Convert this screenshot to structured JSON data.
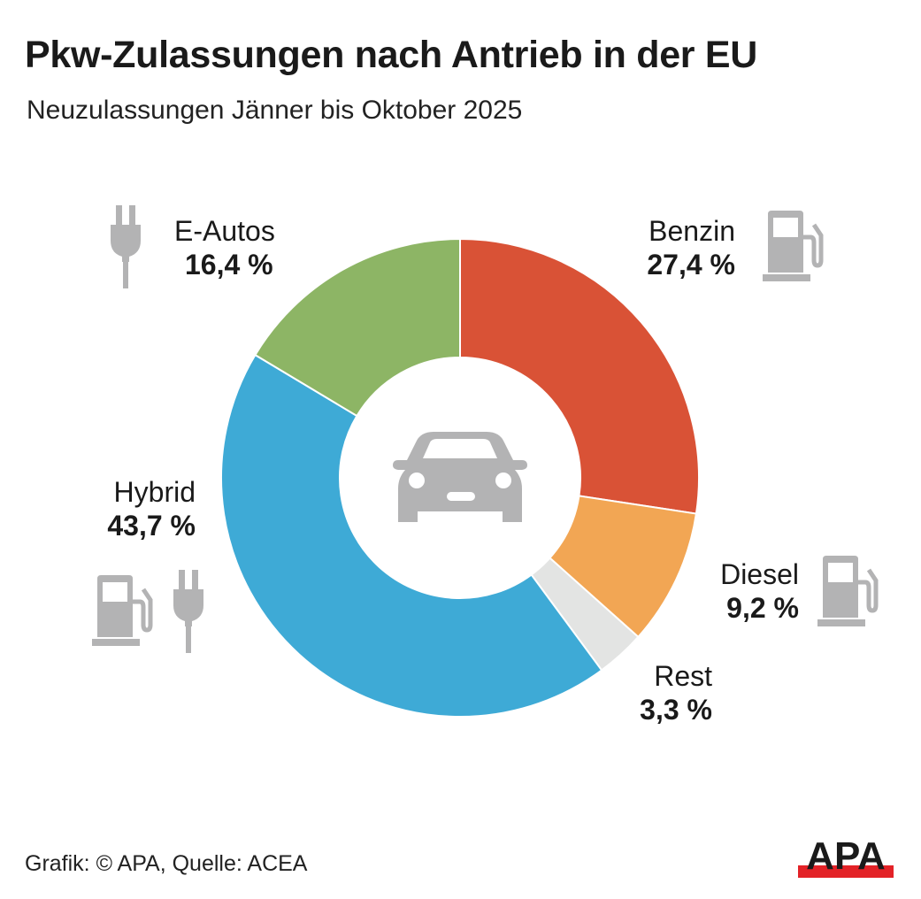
{
  "title": "Pkw-Zulassungen nach Antrieb in der EU",
  "subtitle": "Neuzulassungen Jänner bis Oktober 2025",
  "source": "Grafik: © APA, Quelle: ACEA",
  "logo": "APA",
  "chart_data": {
    "type": "pie",
    "variant": "donut",
    "unit": "%",
    "start": "top, clockwise",
    "categories": [
      "Benzin",
      "Diesel",
      "Rest",
      "Hybrid",
      "E-Autos"
    ],
    "values": [
      27.4,
      9.2,
      3.3,
      43.7,
      16.4
    ],
    "labels": [
      "27,4 %",
      "9,2 %",
      "3,3 %",
      "43,7 %",
      "16,4 %"
    ],
    "colors": [
      "#d95236",
      "#f2a654",
      "#e3e4e3",
      "#3eaad6",
      "#8db565"
    ],
    "center_icon": "car-icon",
    "category_icons": {
      "Benzin": [
        "fuel-pump-icon"
      ],
      "Diesel": [
        "fuel-pump-icon"
      ],
      "Rest": [],
      "Hybrid": [
        "fuel-pump-icon",
        "plug-icon"
      ],
      "E-Autos": [
        "plug-icon"
      ]
    }
  }
}
